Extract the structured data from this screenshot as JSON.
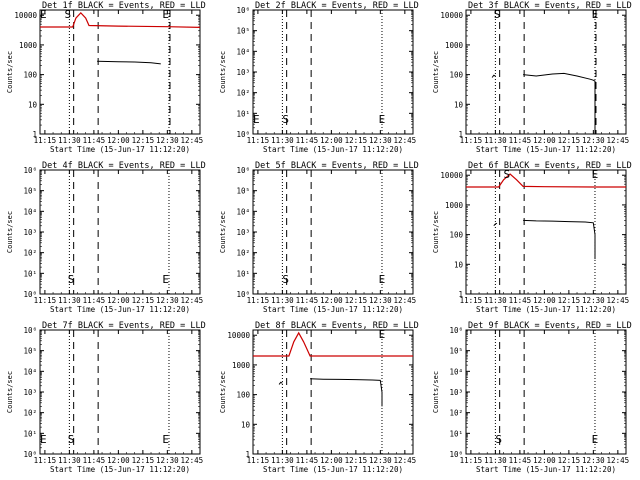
{
  "chart_data": [
    {
      "type": "line",
      "title": "Det 1f BLACK = Events, RED = LLD",
      "xlabel": "Start Time (15-Jun-17 11:12:20)",
      "ylabel": "Counts/sec",
      "xticks": [
        "11:15",
        "11:30",
        "11:45",
        "12:00",
        "12:15",
        "12:30",
        "12:45"
      ],
      "xlim": [
        "11:12",
        "12:50"
      ],
      "yscale": "log",
      "yticks": [
        "1",
        "10",
        "100",
        "1000",
        "10000"
      ],
      "ylim": [
        1,
        15000
      ],
      "markers": [
        {
          "label": "E",
          "time": "11:14"
        },
        {
          "label": "S",
          "time": "11:29"
        },
        {
          "label": "E",
          "time": "12:29"
        }
      ],
      "dotted_lines": [
        "11:30",
        "12:31"
      ],
      "dashed_lines": [
        "11:32",
        "11:47",
        "12:31"
      ],
      "series": [
        {
          "name": "LLD",
          "color": "#cc0000",
          "points": [
            [
              "11:12",
              4000
            ],
            [
              "11:32",
              4000
            ],
            [
              "11:34",
              8000
            ],
            [
              "11:37",
              12000
            ],
            [
              "11:40",
              8000
            ],
            [
              "11:42",
              4500
            ],
            [
              "12:00",
              4300
            ],
            [
              "12:30",
              4100
            ],
            [
              "12:50",
              3900
            ]
          ]
        },
        {
          "name": "Events",
          "color": "#000000",
          "points": [
            [
              "11:30",
              350
            ],
            [
              "11:30",
              250
            ]
          ]
        },
        {
          "name": "Events",
          "color": "#000000",
          "points": [
            [
              "11:47",
              280
            ],
            [
              "12:00",
              270
            ],
            [
              "12:10",
              265
            ],
            [
              "12:20",
              250
            ],
            [
              "12:26",
              230
            ]
          ]
        }
      ]
    },
    {
      "type": "line",
      "title": "Det 2f BLACK = Events, RED = LLD",
      "xlabel": "Start Time (15-Jun-17 11:12:20)",
      "ylabel": "Counts/sec",
      "xticks": [
        "11:15",
        "11:30",
        "11:45",
        "12:00",
        "12:15",
        "12:30",
        "12:45"
      ],
      "xlim": [
        "11:12",
        "12:50"
      ],
      "yscale": "log",
      "yticks": [
        "10⁰",
        "10¹",
        "10²",
        "10³",
        "10⁴",
        "10⁵",
        "10⁶"
      ],
      "ylim": [
        1,
        1000000
      ],
      "markers": [
        {
          "label": "E",
          "time": "11:14"
        },
        {
          "label": "S",
          "time": "11:32"
        },
        {
          "label": "E",
          "time": "12:31"
        }
      ],
      "dotted_lines": [
        "11:30",
        "12:31"
      ],
      "dashed_lines": [
        "11:32",
        "11:47"
      ],
      "series": []
    },
    {
      "type": "line",
      "title": "Det 3f BLACK = Events, RED = LLD",
      "xlabel": "Start Time (15-Jun-17 11:12:20)",
      "ylabel": "Counts/sec",
      "xticks": [
        "11:15",
        "11:30",
        "11:45",
        "12:00",
        "12:15",
        "12:30",
        "12:45"
      ],
      "xlim": [
        "11:12",
        "12:50"
      ],
      "yscale": "log",
      "yticks": [
        "1",
        "10",
        "100",
        "1000",
        "10000"
      ],
      "ylim": [
        1,
        15000
      ],
      "markers": [
        {
          "label": "S",
          "time": "11:31"
        },
        {
          "label": "E",
          "time": "12:31"
        }
      ],
      "dotted_lines": [
        "11:30",
        "12:31"
      ],
      "dashed_lines": [
        "11:32",
        "11:47",
        "12:31"
      ],
      "series": [
        {
          "name": "Events",
          "color": "#000000",
          "points": [
            [
              "11:28",
              80
            ],
            [
              "11:29",
              95
            ],
            [
              "11:30",
              90
            ]
          ]
        },
        {
          "name": "Events",
          "color": "#000000",
          "points": [
            [
              "11:47",
              100
            ],
            [
              "11:55",
              90
            ],
            [
              "12:05",
              105
            ],
            [
              "12:12",
              110
            ],
            [
              "12:20",
              90
            ],
            [
              "12:28",
              70
            ],
            [
              "12:30",
              65
            ],
            [
              "12:31",
              60
            ],
            [
              "12:31",
              1
            ]
          ]
        }
      ]
    },
    {
      "type": "line",
      "title": "Det 4f BLACK = Events, RED = LLD",
      "xlabel": "Start Time (15-Jun-17 11:12:20)",
      "ylabel": "Counts/sec",
      "xticks": [
        "11:15",
        "11:30",
        "11:45",
        "12:00",
        "12:15",
        "12:30",
        "12:45"
      ],
      "xlim": [
        "11:12",
        "12:50"
      ],
      "yscale": "log",
      "yticks": [
        "10⁰",
        "10¹",
        "10²",
        "10³",
        "10⁴",
        "10⁵",
        "10⁶"
      ],
      "ylim": [
        1,
        1000000
      ],
      "markers": [
        {
          "label": "S",
          "time": "11:31"
        },
        {
          "label": "E",
          "time": "12:29"
        }
      ],
      "dotted_lines": [
        "11:30",
        "12:31"
      ],
      "dashed_lines": [
        "11:32",
        "11:47"
      ],
      "series": []
    },
    {
      "type": "line",
      "title": "Det 5f BLACK = Events, RED = LLD",
      "xlabel": "Start Time (15-Jun-17 11:12:20)",
      "ylabel": "Counts/sec",
      "xticks": [
        "11:15",
        "11:30",
        "11:45",
        "12:00",
        "12:15",
        "12:30",
        "12:45"
      ],
      "xlim": [
        "11:12",
        "12:50"
      ],
      "yscale": "log",
      "yticks": [
        "10⁰",
        "10¹",
        "10²",
        "10³",
        "10⁴",
        "10⁵",
        "10⁶"
      ],
      "ylim": [
        1,
        1000000
      ],
      "markers": [
        {
          "label": "S",
          "time": "11:32"
        },
        {
          "label": "E",
          "time": "12:31"
        }
      ],
      "dotted_lines": [
        "11:30",
        "12:31"
      ],
      "dashed_lines": [
        "11:32",
        "11:47"
      ],
      "series": []
    },
    {
      "type": "line",
      "title": "Det 6f BLACK = Events, RED = LLD",
      "xlabel": "Start Time (15-Jun-17 11:12:20)",
      "ylabel": "Counts/sec",
      "xticks": [
        "11:15",
        "11:30",
        "11:45",
        "12:00",
        "12:15",
        "12:30",
        "12:45"
      ],
      "xlim": [
        "11:12",
        "12:50"
      ],
      "yscale": "log",
      "yticks": [
        "1",
        "10",
        "100",
        "1000",
        "10000"
      ],
      "ylim": [
        1,
        15000
      ],
      "markers": [
        {
          "label": "S",
          "time": "11:37"
        },
        {
          "label": "E",
          "time": "12:31"
        }
      ],
      "dotted_lines": [
        "11:30",
        "12:31"
      ],
      "dashed_lines": [
        "11:32",
        "11:47"
      ],
      "series": [
        {
          "name": "LLD",
          "color": "#cc0000",
          "points": [
            [
              "11:12",
              4000
            ],
            [
              "11:32",
              4000
            ],
            [
              "11:35",
              7000
            ],
            [
              "11:39",
              11000
            ],
            [
              "11:43",
              7000
            ],
            [
              "11:47",
              4200
            ],
            [
              "12:00",
              4100
            ],
            [
              "12:30",
              4000
            ],
            [
              "12:50",
              4000
            ]
          ]
        },
        {
          "name": "Events",
          "color": "#000000",
          "points": [
            [
              "11:29",
              200
            ],
            [
              "11:30",
              230
            ],
            [
              "11:31",
              240
            ]
          ]
        },
        {
          "name": "Events",
          "color": "#000000",
          "points": [
            [
              "11:47",
              300
            ],
            [
              "11:55",
              290
            ],
            [
              "12:05",
              285
            ],
            [
              "12:15",
              275
            ],
            [
              "12:25",
              265
            ],
            [
              "12:30",
              250
            ],
            [
              "12:31",
              100
            ],
            [
              "12:31",
              15
            ]
          ]
        }
      ]
    },
    {
      "type": "line",
      "title": "Det 7f BLACK = Events, RED = LLD",
      "xlabel": "Start Time (15-Jun-17 11:12:20)",
      "ylabel": "Counts/sec",
      "xticks": [
        "11:15",
        "11:30",
        "11:45",
        "12:00",
        "12:15",
        "12:30",
        "12:45"
      ],
      "xlim": [
        "11:12",
        "12:50"
      ],
      "yscale": "log",
      "yticks": [
        "10⁰",
        "10¹",
        "10²",
        "10³",
        "10⁴",
        "10⁵",
        "10⁶"
      ],
      "ylim": [
        1,
        1000000
      ],
      "markers": [
        {
          "label": "E",
          "time": "11:14"
        },
        {
          "label": "S",
          "time": "11:31"
        },
        {
          "label": "E",
          "time": "12:29"
        }
      ],
      "dotted_lines": [
        "11:30",
        "12:31"
      ],
      "dashed_lines": [
        "11:32",
        "11:47"
      ],
      "series": []
    },
    {
      "type": "line",
      "title": "Det 8f BLACK = Events, RED = LLD",
      "xlabel": "Start Time (15-Jun-17 11:12:20)",
      "ylabel": "Counts/sec",
      "xticks": [
        "11:15",
        "11:30",
        "11:45",
        "12:00",
        "12:15",
        "12:30",
        "12:45"
      ],
      "xlim": [
        "11:12",
        "12:50"
      ],
      "yscale": "log",
      "yticks": [
        "1",
        "10",
        "100",
        "1000",
        "10000"
      ],
      "ylim": [
        1,
        15000
      ],
      "markers": [
        {
          "label": "E",
          "time": "12:31"
        }
      ],
      "dotted_lines": [
        "11:30",
        "12:31"
      ],
      "dashed_lines": [
        "11:32",
        "11:47"
      ],
      "series": [
        {
          "name": "LLD",
          "color": "#cc0000",
          "points": [
            [
              "11:12",
              2000
            ],
            [
              "11:34",
              2000
            ],
            [
              "11:37",
              6000
            ],
            [
              "11:40",
              12000
            ],
            [
              "11:43",
              6000
            ],
            [
              "11:47",
              2000
            ],
            [
              "12:00",
              2000
            ],
            [
              "12:30",
              2000
            ],
            [
              "12:50",
              2000
            ]
          ]
        },
        {
          "name": "Events",
          "color": "#000000",
          "points": [
            [
              "11:28",
              220
            ],
            [
              "11:29",
              260
            ],
            [
              "11:30",
              240
            ]
          ]
        },
        {
          "name": "Events",
          "color": "#000000",
          "points": [
            [
              "11:47",
              340
            ],
            [
              "11:55",
              330
            ],
            [
              "12:05",
              325
            ],
            [
              "12:15",
              320
            ],
            [
              "12:25",
              310
            ],
            [
              "12:30",
              300
            ],
            [
              "12:31",
              120
            ],
            [
              "12:31",
              40
            ]
          ]
        }
      ]
    },
    {
      "type": "line",
      "title": "Det 9f BLACK = Events, RED = LLD",
      "xlabel": "Start Time (15-Jun-17 11:12:20)",
      "ylabel": "Counts/sec",
      "xticks": [
        "11:15",
        "11:30",
        "11:45",
        "12:00",
        "12:15",
        "12:30",
        "12:45"
      ],
      "xlim": [
        "11:12",
        "12:50"
      ],
      "yscale": "log",
      "yticks": [
        "10⁰",
        "10¹",
        "10²",
        "10³",
        "10⁴",
        "10⁵",
        "10⁶"
      ],
      "ylim": [
        1,
        1000000
      ],
      "markers": [
        {
          "label": "S",
          "time": "11:32"
        },
        {
          "label": "E",
          "time": "12:31"
        }
      ],
      "dotted_lines": [
        "11:30",
        "12:31"
      ],
      "dashed_lines": [
        "11:32",
        "11:47"
      ],
      "series": []
    }
  ]
}
